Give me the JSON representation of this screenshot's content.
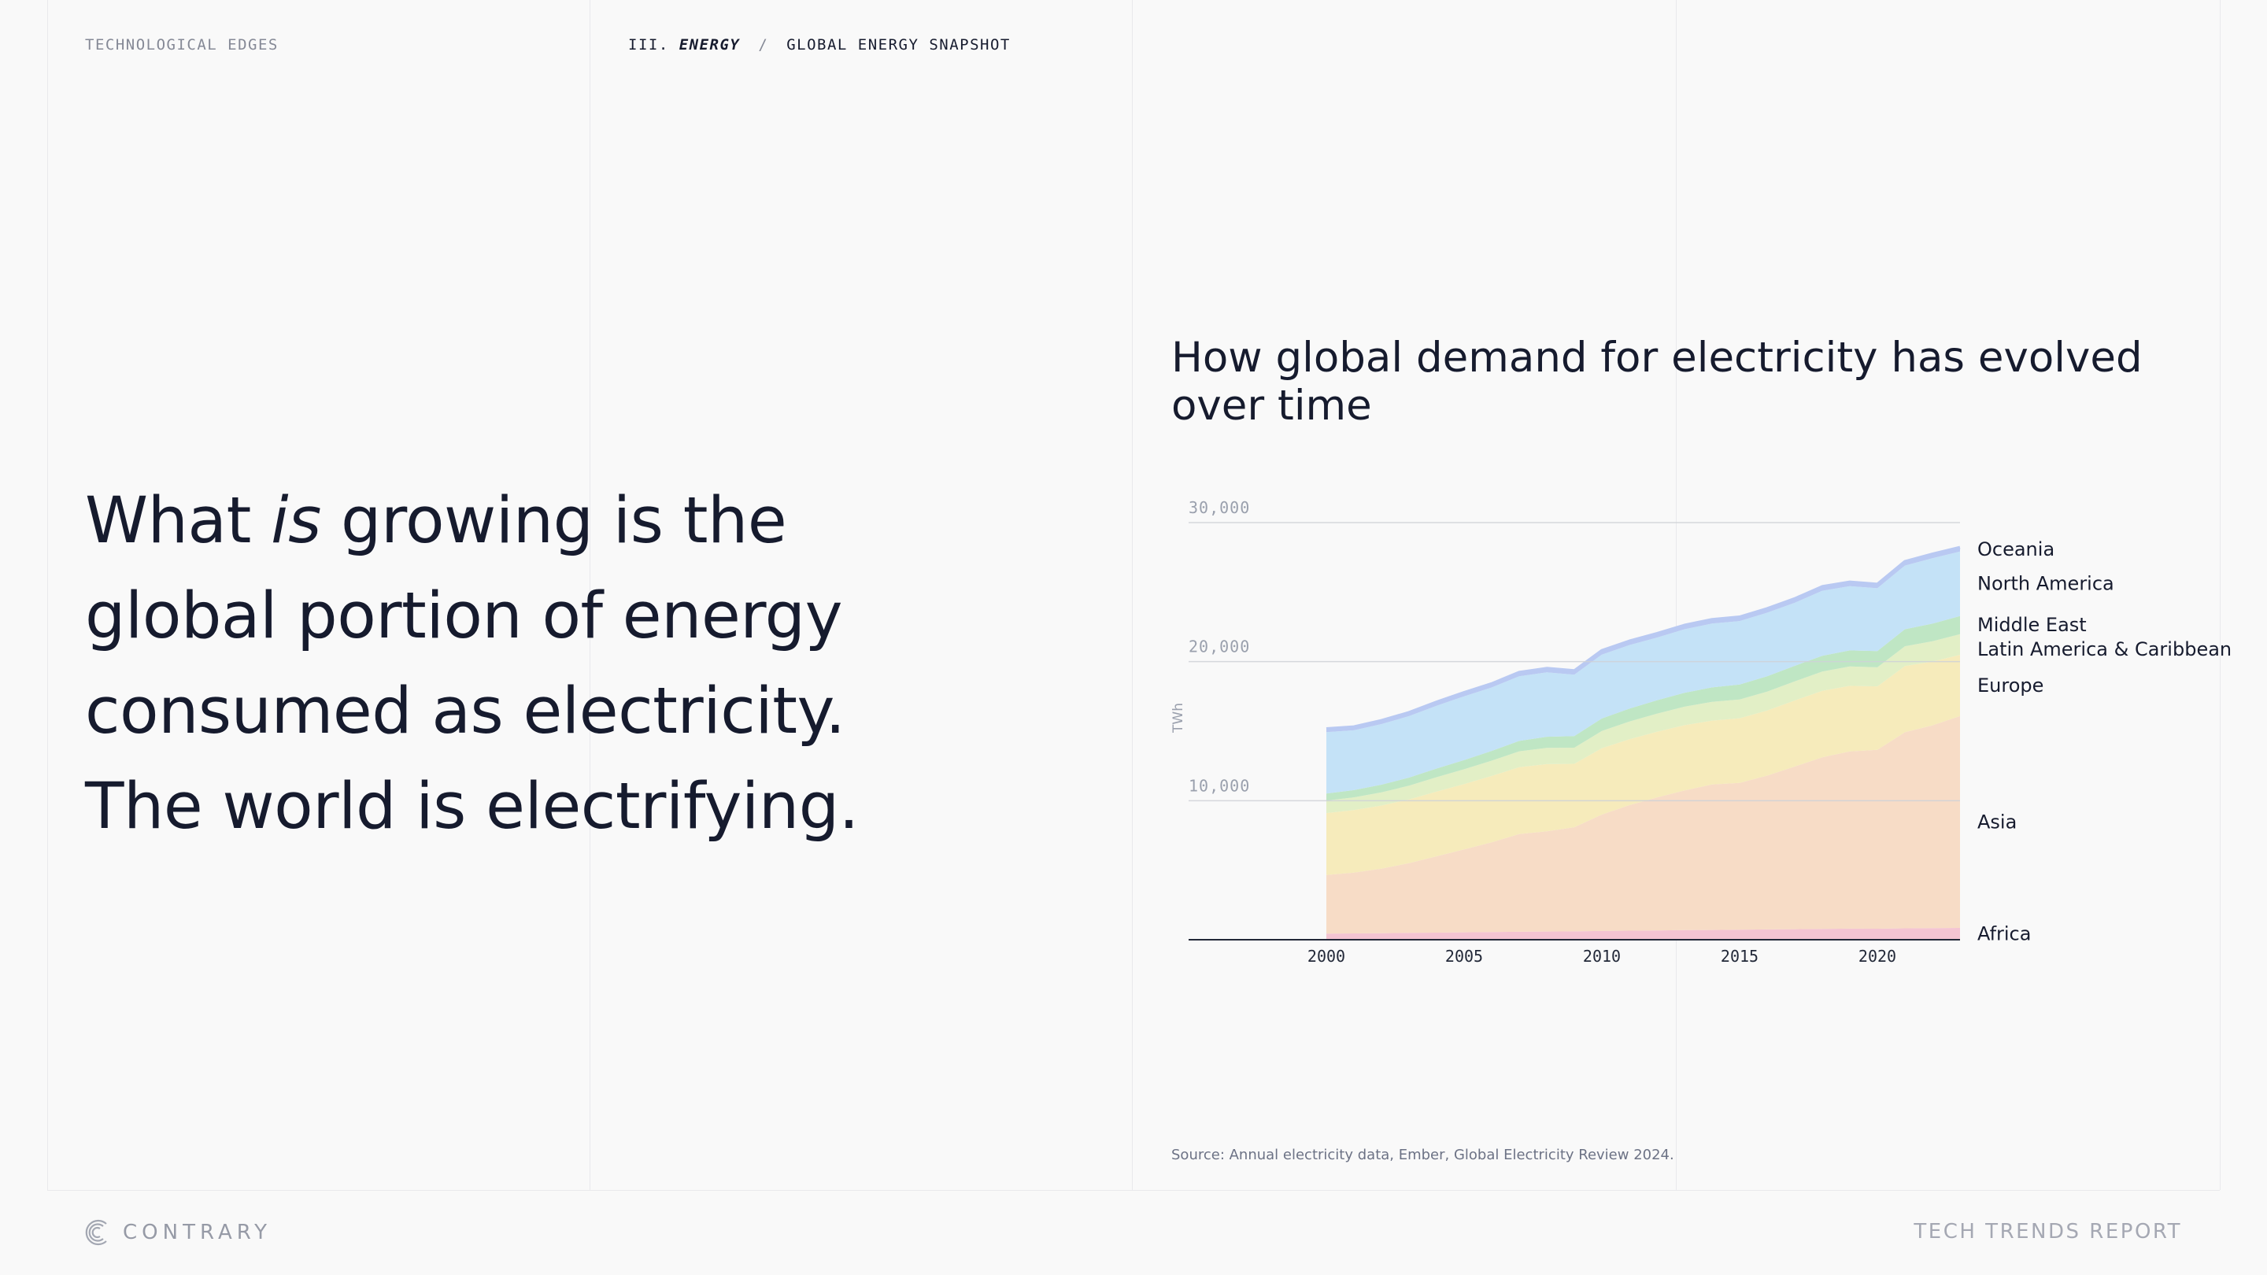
{
  "header": {
    "left_label": "TECHNOLOGICAL EDGES",
    "section_number": "III.",
    "section_name": "ENERGY",
    "separator": "/",
    "page_name": "GLOBAL ENERGY SNAPSHOT"
  },
  "headline": {
    "line1_pre": "What ",
    "line1_em": "is",
    "line1_post": " growing is the",
    "line2": "global portion of energy",
    "line3": "consumed as electricity.",
    "line4": "The world is electrifying."
  },
  "footer": {
    "brand": "CONTRARY",
    "report": "TECH TRENDS REPORT"
  },
  "source": "Source: Annual electricity data, Ember, Global Electricity Review 2024.",
  "chart_data": {
    "type": "area",
    "stacked": true,
    "title": "How global demand for electricity has evolved over time",
    "xlabel": "",
    "ylabel": "TWh",
    "ylim": [
      0,
      30000
    ],
    "xlim": [
      1995,
      2023
    ],
    "x_ticks": [
      2000,
      2005,
      2010,
      2015,
      2020
    ],
    "y_ticks": [
      10000,
      20000,
      30000
    ],
    "y_tick_labels": [
      "10,000",
      "20,000",
      "30,000"
    ],
    "grid": true,
    "legend": "direct labels at right end",
    "x": [
      2000,
      2001,
      2002,
      2003,
      2004,
      2005,
      2006,
      2007,
      2008,
      2009,
      2010,
      2011,
      2012,
      2013,
      2014,
      2015,
      2016,
      2017,
      2018,
      2019,
      2020,
      2021,
      2022,
      2023
    ],
    "series": [
      {
        "name": "Africa",
        "color": "#f4c4d2",
        "values": [
          440,
          455,
          470,
          490,
          510,
          530,
          550,
          570,
          590,
          600,
          630,
          650,
          670,
          690,
          700,
          720,
          740,
          760,
          780,
          800,
          790,
          820,
          830,
          850
        ]
      },
      {
        "name": "Asia",
        "color": "#f7dcc6",
        "values": [
          4210,
          4375,
          4640,
          5010,
          5490,
          5960,
          6450,
          7030,
          7210,
          7490,
          8370,
          9030,
          9560,
          10040,
          10460,
          10560,
          11060,
          11690,
          12340,
          12740,
          12870,
          14100,
          14590,
          15230
        ]
      },
      {
        "name": "Europe",
        "color": "#f6ebbb",
        "values": [
          4460,
          4490,
          4540,
          4590,
          4660,
          4700,
          4780,
          4810,
          4830,
          4560,
          4780,
          4740,
          4730,
          4700,
          4600,
          4650,
          4690,
          4760,
          4780,
          4720,
          4560,
          4760,
          4590,
          4410
        ]
      },
      {
        "name": "Latin America & Caribbean",
        "color": "#e2efc6",
        "values": [
          900,
          920,
          950,
          990,
          1030,
          1070,
          1100,
          1140,
          1170,
          1160,
          1230,
          1270,
          1300,
          1330,
          1350,
          1350,
          1360,
          1370,
          1390,
          1400,
          1370,
          1430,
          1460,
          1490
        ]
      },
      {
        "name": "Middle East",
        "color": "#bfe6c4",
        "values": [
          500,
          520,
          550,
          580,
          620,
          660,
          700,
          750,
          800,
          840,
          900,
          930,
          960,
          1000,
          1040,
          1070,
          1100,
          1120,
          1130,
          1150,
          1170,
          1220,
          1260,
          1300
        ]
      },
      {
        "name": "North America",
        "color": "#c4e2f7",
        "values": [
          4420,
          4300,
          4360,
          4420,
          4520,
          4590,
          4560,
          4650,
          4630,
          4410,
          4600,
          4570,
          4510,
          4570,
          4590,
          4570,
          4570,
          4530,
          4680,
          4620,
          4520,
          4580,
          4710,
          4640
        ]
      },
      {
        "name": "Oceania",
        "color": "#b9c9f2",
        "values": [
          240,
          245,
          250,
          255,
          260,
          265,
          270,
          275,
          280,
          280,
          285,
          285,
          285,
          285,
          285,
          285,
          285,
          290,
          290,
          290,
          285,
          290,
          290,
          290
        ]
      }
    ]
  }
}
